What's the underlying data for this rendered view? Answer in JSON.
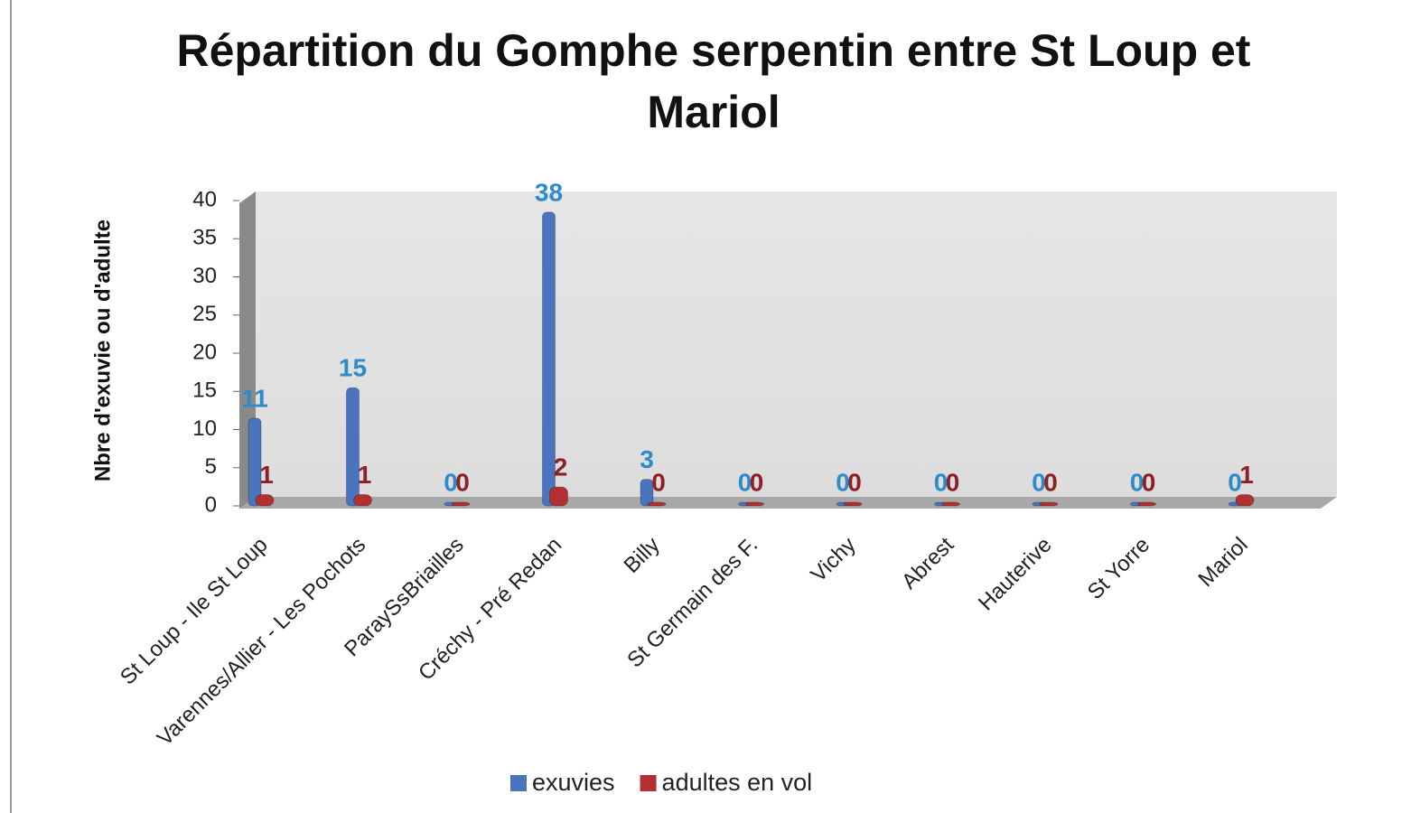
{
  "chart_data": {
    "type": "bar",
    "title": "Répartition du Gomphe serpentin entre St Loup et Mariol",
    "y_label": "Nbre d'exuvie ou d'adulte",
    "categories": [
      "St Loup - Ile St Loup",
      "Varennes/Allier - Les Pochots",
      "ParaySsBriailles",
      "Créchy - Pré Redan",
      "Billy",
      "St Germain des F.",
      "Vichy",
      "Abrest",
      "Hauterive",
      "St Yorre",
      "Mariol"
    ],
    "series": [
      {
        "name": "exuvies",
        "color": "#4a74bd",
        "label_color": "#2e8bc9",
        "values": [
          11,
          15,
          0,
          38,
          3,
          0,
          0,
          0,
          0,
          0,
          0
        ]
      },
      {
        "name": "adultes en vol",
        "color": "#b33030",
        "label_color": "#8e1f24",
        "values": [
          1,
          1,
          0,
          2,
          0,
          0,
          0,
          0,
          0,
          0,
          1
        ]
      }
    ],
    "ylim": [
      0,
      40
    ],
    "yticks": [
      0,
      5,
      10,
      15,
      20,
      25,
      30,
      35,
      40
    ],
    "legend": "bottom"
  }
}
